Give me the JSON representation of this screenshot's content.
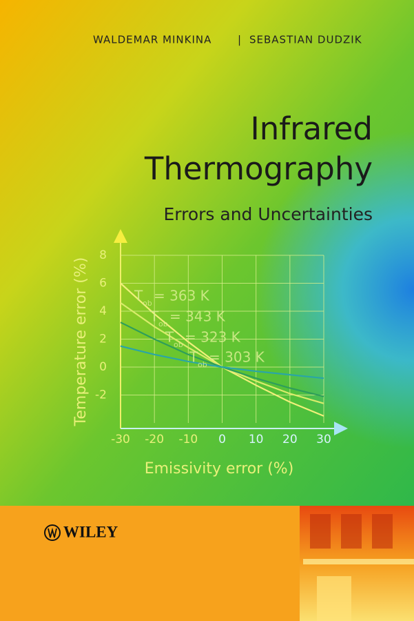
{
  "cover": {
    "authors": [
      "WALDEMAR MINKINA",
      "SEBASTIAN DUDZIK"
    ],
    "separator": "|",
    "title_lines": [
      "Infrared",
      "Thermography"
    ],
    "subtitle": "Errors and Uncertainties",
    "publisher": "WILEY"
  },
  "chart_data": {
    "type": "line",
    "xlabel": "Emissivity error (%)",
    "ylabel": "Temperature error (%)",
    "x": [
      -30,
      -20,
      -10,
      0,
      10,
      20,
      30
    ],
    "xlim": [
      -30,
      30
    ],
    "xticks": [
      -30,
      -20,
      -10,
      0,
      10,
      20,
      30
    ],
    "ylim": [
      -4,
      8
    ],
    "yticks": [
      -2,
      0,
      2,
      4,
      6,
      8
    ],
    "grid": true,
    "series": [
      {
        "symbol": "T",
        "symbol_sub": "ob",
        "name": "= 363 K",
        "color": "#f0f07a",
        "values": [
          6,
          3.8,
          1.8,
          0,
          -1.3,
          -2.5,
          -3.5
        ]
      },
      {
        "symbol": "T",
        "symbol_sub": "ob",
        "name": "= 343 K",
        "color": "#d8ec6a",
        "values": [
          4.6,
          2.9,
          1.4,
          0,
          -1,
          -1.9,
          -2.6
        ]
      },
      {
        "symbol": "T",
        "symbol_sub": "ob",
        "name": "= 323 K",
        "color": "#2e9e5a",
        "values": [
          3.2,
          2,
          0.9,
          0,
          -0.8,
          -1.5,
          -2.1
        ]
      },
      {
        "symbol": "T",
        "symbol_sub": "ob",
        "name": "= 303 K",
        "color": "#2aa6a6",
        "values": [
          1.5,
          0.9,
          0.4,
          0,
          -0.3,
          -0.55,
          -0.8
        ]
      }
    ]
  }
}
